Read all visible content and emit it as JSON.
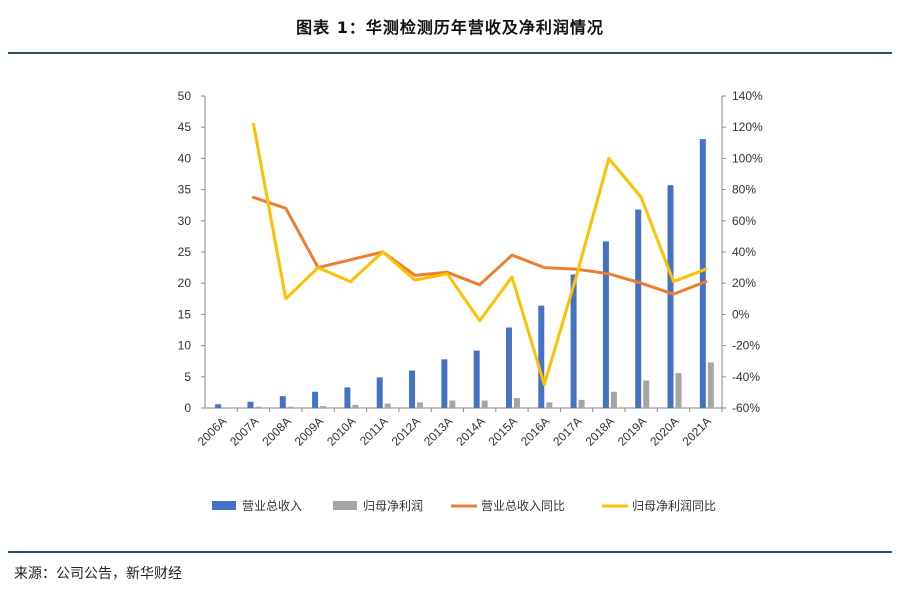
{
  "title": "图表 1：华测检测历年营收及净利润情况",
  "source": "来源：公司公告，新华财经",
  "chart_data": {
    "type": "bar",
    "categories": [
      "2006A",
      "2007A",
      "2008A",
      "2009A",
      "2010A",
      "2011A",
      "2012A",
      "2013A",
      "2014A",
      "2015A",
      "2016A",
      "2017A",
      "2018A",
      "2019A",
      "2020A",
      "2021A"
    ],
    "series": [
      {
        "name": "营业总收入",
        "kind": "bar",
        "axis": "left",
        "color": "#4472c4",
        "values": [
          0.6,
          1.0,
          1.9,
          2.6,
          3.3,
          4.9,
          6.0,
          7.8,
          9.2,
          12.9,
          16.4,
          21.4,
          26.7,
          31.8,
          35.7,
          43.1
        ]
      },
      {
        "name": "归母净利润",
        "kind": "bar",
        "axis": "left",
        "color": "#a5a5a5",
        "values": [
          0.1,
          0.2,
          0.2,
          0.3,
          0.5,
          0.7,
          0.9,
          1.2,
          1.2,
          1.6,
          0.9,
          1.3,
          2.6,
          4.4,
          5.6,
          7.3
        ]
      },
      {
        "name": "营业总收入同比",
        "kind": "line",
        "axis": "right",
        "color": "#ed7d31",
        "values": [
          null,
          75,
          68,
          30,
          35,
          40,
          25,
          27,
          19,
          38,
          30,
          29,
          26,
          20,
          13,
          21
        ]
      },
      {
        "name": "归母净利润同比",
        "kind": "line",
        "axis": "right",
        "color": "#ffc000",
        "values": [
          null,
          122,
          10,
          30,
          21,
          40,
          22,
          26,
          -4,
          24,
          -45,
          25,
          100,
          75,
          21,
          29
        ]
      }
    ],
    "left_axis": {
      "min": 0,
      "max": 50,
      "step": 5,
      "tick_labels": [
        "0",
        "5",
        "10",
        "15",
        "20",
        "25",
        "30",
        "35",
        "40",
        "45",
        "50"
      ]
    },
    "right_axis": {
      "min": -60,
      "max": 140,
      "step": 20,
      "tick_labels": [
        "-60%",
        "-40%",
        "-20%",
        "0%",
        "20%",
        "40%",
        "60%",
        "80%",
        "100%",
        "120%",
        "140%"
      ]
    },
    "legend": [
      "营业总收入",
      "归母净利润",
      "营业总收入同比",
      "归母净利润同比"
    ],
    "legend_position": "bottom"
  }
}
